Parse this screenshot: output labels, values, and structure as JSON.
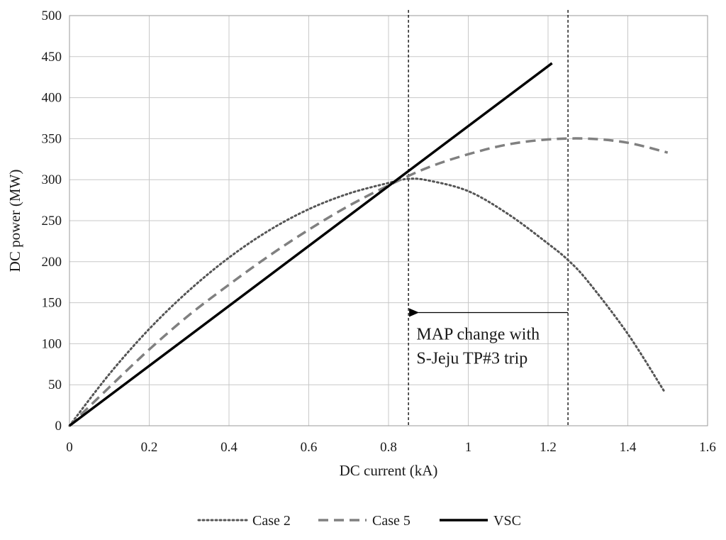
{
  "chart_data": {
    "type": "line",
    "title": "",
    "xlabel": "DC current (kA)",
    "ylabel": "DC power (MW)",
    "xlim": [
      0,
      1.6
    ],
    "ylim": [
      0,
      500
    ],
    "xticks": [
      "0",
      "0.2",
      "0.4",
      "0.6",
      "0.8",
      "1",
      "1.2",
      "1.4",
      "1.6"
    ],
    "yticks": [
      "0",
      "50",
      "100",
      "150",
      "200",
      "250",
      "300",
      "350",
      "400",
      "450",
      "500"
    ],
    "grid": true,
    "legend_position": "bottom",
    "series": [
      {
        "name": "Case 2",
        "style": "dotted",
        "color": "#555555",
        "x": [
          0,
          0.1,
          0.2,
          0.3,
          0.4,
          0.5,
          0.6,
          0.7,
          0.8,
          0.85,
          0.9,
          1.0,
          1.1,
          1.2,
          1.25,
          1.3,
          1.4,
          1.49
        ],
        "y": [
          0,
          63,
          118,
          165,
          205,
          238,
          264,
          283,
          296,
          301,
          299,
          286,
          258,
          222,
          202,
          176,
          112,
          43
        ]
      },
      {
        "name": "Case 5",
        "style": "dashed",
        "color": "#808080",
        "x": [
          0,
          0.1,
          0.2,
          0.3,
          0.4,
          0.5,
          0.6,
          0.7,
          0.8,
          0.9,
          1.0,
          1.1,
          1.2,
          1.3,
          1.4,
          1.5
        ],
        "y": [
          0,
          47,
          93,
          135,
          172,
          207,
          239,
          268,
          293,
          315,
          331,
          343,
          349,
          350,
          345,
          333
        ]
      },
      {
        "name": "VSC",
        "style": "solid",
        "color": "#000000",
        "x": [
          0,
          1.21
        ],
        "y": [
          0,
          442
        ]
      }
    ],
    "vlines": [
      0.85,
      1.25
    ],
    "arrow": {
      "from_x": 1.25,
      "to_x": 0.85,
      "y": 138
    },
    "annotations": [
      {
        "lines": [
          "MAP change with",
          "S-Jeju TP#3 trip"
        ],
        "x": 0.87,
        "y": 105
      }
    ]
  }
}
